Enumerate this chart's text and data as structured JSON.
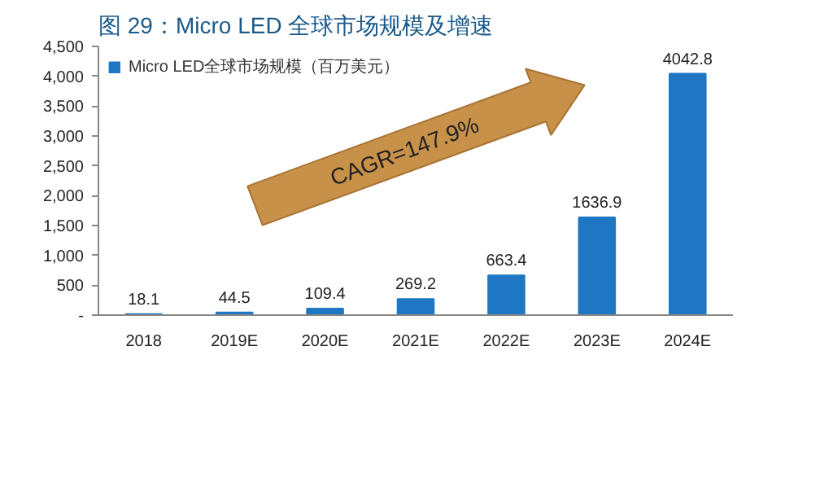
{
  "chart_data": {
    "type": "bar",
    "title": "图 29：Micro LED 全球市场规模及增速",
    "categories": [
      "2018",
      "2019E",
      "2020E",
      "2021E",
      "2022E",
      "2023E",
      "2024E"
    ],
    "series": [
      {
        "name": "Micro LED全球市场规模（百万美元）",
        "color": "#1f77c4",
        "values": [
          18.1,
          44.5,
          109.4,
          269.2,
          663.4,
          1636.9,
          4042.8
        ]
      }
    ],
    "ylim": [
      0,
      4500
    ],
    "yticks": [
      {
        "value": 0,
        "label": "-"
      },
      500,
      {
        "value": 1000,
        "label": "1,000"
      },
      {
        "value": 1500,
        "label": "1,500"
      },
      {
        "value": 2000,
        "label": "2,000"
      },
      {
        "value": 2500,
        "label": "2,500"
      },
      {
        "value": 3000,
        "label": "3,000"
      },
      {
        "value": 3500,
        "label": "3,500"
      },
      {
        "value": 4000,
        "label": "4,000"
      },
      {
        "value": 4500,
        "label": "4,500"
      }
    ],
    "annotations": [
      "CAGR=147.9%"
    ],
    "data_labels": true,
    "grid": false,
    "legend": "top left"
  }
}
